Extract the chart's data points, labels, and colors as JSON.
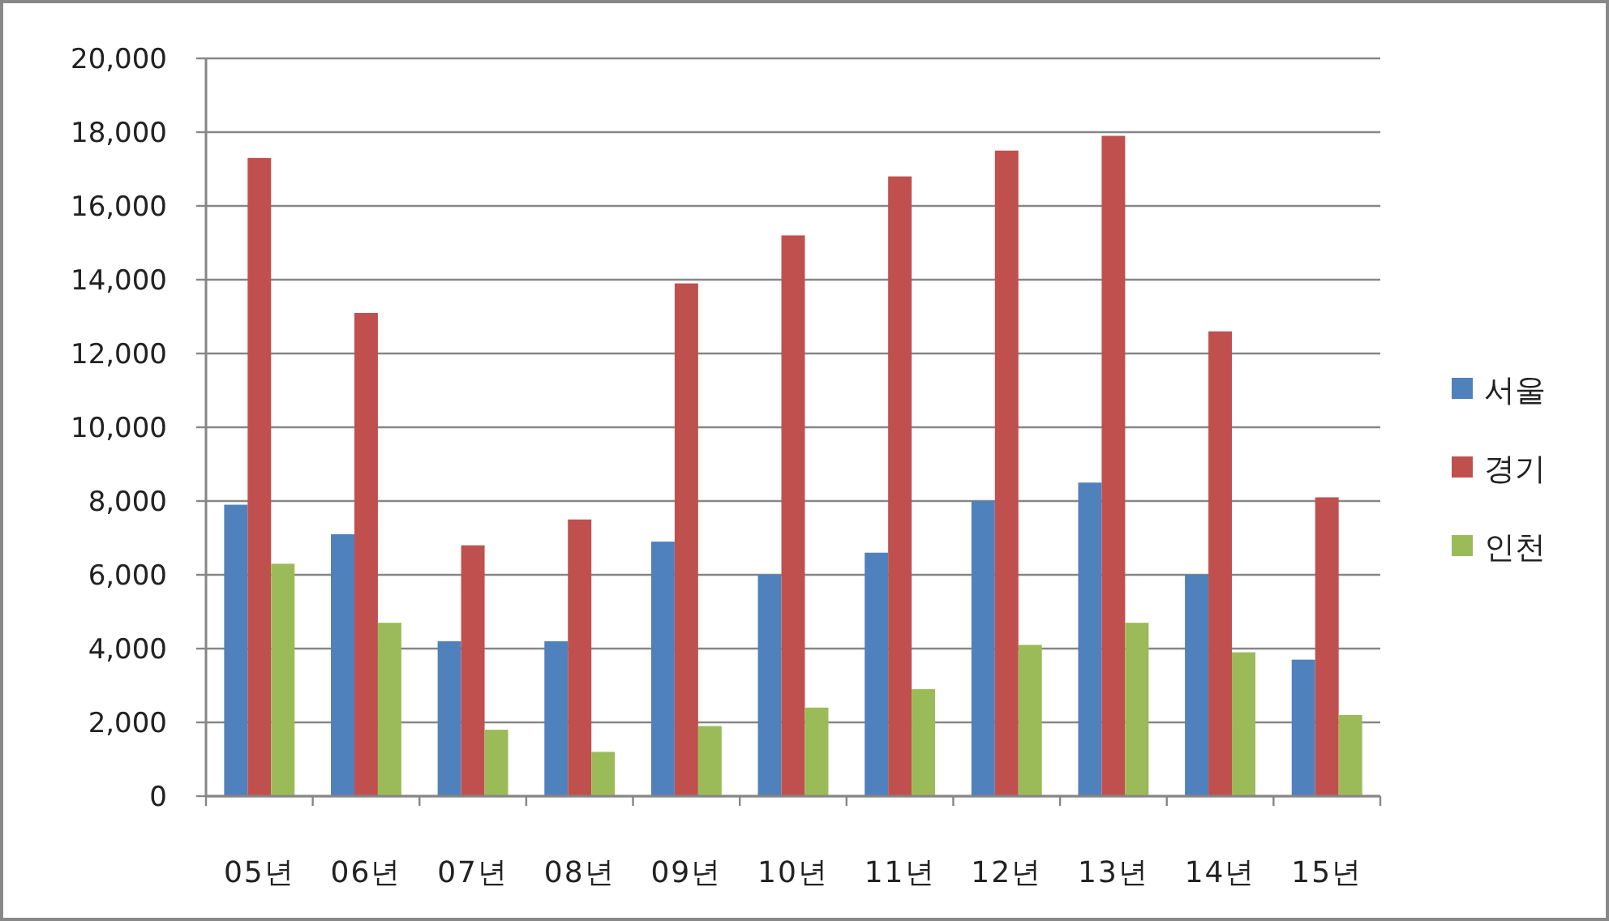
{
  "chart_data": {
    "type": "bar",
    "categories": [
      "05년",
      "06년",
      "07년",
      "08년",
      "09년",
      "10년",
      "11년",
      "12년",
      "13년",
      "14년",
      "15년"
    ],
    "series": [
      {
        "name": "서울",
        "color": "#4f81bd",
        "values": [
          7900,
          7100,
          4200,
          4200,
          6900,
          6000,
          6600,
          8000,
          8500,
          6000,
          3700
        ]
      },
      {
        "name": "경기",
        "color": "#c0504d",
        "values": [
          17300,
          13100,
          6800,
          7500,
          13900,
          15200,
          16800,
          17500,
          17900,
          12600,
          8100
        ]
      },
      {
        "name": "인천",
        "color": "#9bbb59",
        "values": [
          6300,
          4700,
          1800,
          1200,
          1900,
          2400,
          2900,
          4100,
          4700,
          3900,
          2200
        ]
      }
    ],
    "ylim": [
      0,
      20000
    ],
    "yticks": [
      {
        "value": 0,
        "label": "0"
      },
      {
        "value": 2000,
        "label": "2,000"
      },
      {
        "value": 4000,
        "label": "4,000"
      },
      {
        "value": 6000,
        "label": "6,000"
      },
      {
        "value": 8000,
        "label": "8,000"
      },
      {
        "value": 10000,
        "label": "10,000"
      },
      {
        "value": 12000,
        "label": "12,000"
      },
      {
        "value": 14000,
        "label": "14,000"
      },
      {
        "value": 16000,
        "label": "16,000"
      },
      {
        "value": 18000,
        "label": "18,000"
      },
      {
        "value": 20000,
        "label": "20,000"
      }
    ],
    "grid": "y",
    "legend": "right"
  }
}
